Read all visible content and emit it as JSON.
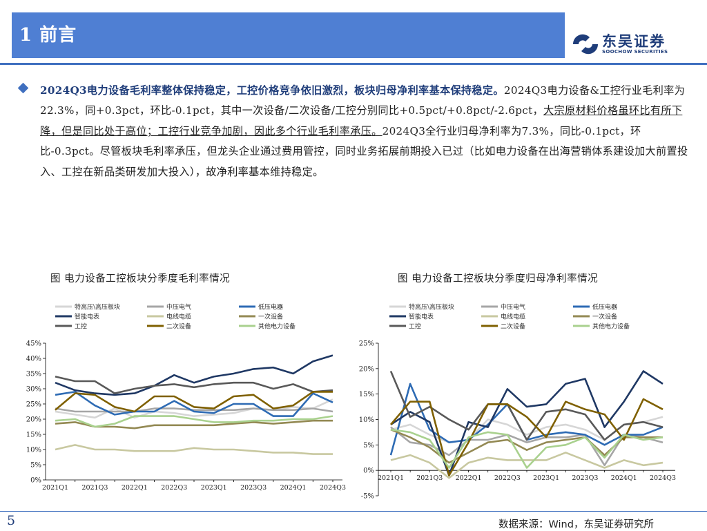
{
  "header": {
    "section_title": "1 前言"
  },
  "logo": {
    "cn": "东吴证券",
    "en": "SOOCHOW SECURITIES"
  },
  "paragraph": {
    "highlight": "2024Q3电力设备毛利率整体保持稳定，工控价格竞争依旧激烈，板块归母净利率基本保持稳定。",
    "part1": "2024Q3电力设备&工控行业毛利率为22.3%，同+0.3pct，环比-0.1pct，其中一次设备/二次设备/工控分别同比+0.5pct/+0.8pct/-2.6pct，",
    "underlined": "大宗原材料价格虽环比有所下降，但是同比处于高位；工控行业竞争加剧，因此多个行业毛利率承压。",
    "part2": "2024Q3全行业归母净利率为7.3%，同比-0.1pct，环比-0.3pct。尽管板块毛利率承压，但龙头企业通过费用管控，同时业务拓展前期投入已过（比如电力设备在出海营销体系建设加大前置投入、工控在新品类研发加大投入），故净利率基本维持稳定。"
  },
  "footer": {
    "page": "5",
    "source": "数据来源：Wind，东吴证券研究所"
  },
  "chart_data": [
    {
      "type": "line",
      "title": "图 电力设备工控板块分季度毛利率情况",
      "x": [
        "2021Q1",
        "2021Q2",
        "2021Q3",
        "2021Q4",
        "2022Q1",
        "2022Q2",
        "2022Q3",
        "2022Q4",
        "2023Q1",
        "2023Q2",
        "2023Q3",
        "2023Q4",
        "2024Q1",
        "2024Q2",
        "2024Q3"
      ],
      "x_tick_labels": [
        "2021Q1",
        "2021Q3",
        "2022Q1",
        "2022Q3",
        "2023Q1",
        "2023Q3",
        "2024Q1",
        "2024Q3"
      ],
      "y_ticks": [
        "0%",
        "5%",
        "10%",
        "15%",
        "20%",
        "25%",
        "30%",
        "35%",
        "40%",
        "45%"
      ],
      "ylim": [
        0,
        45
      ],
      "legend_position": "top",
      "series": [
        {
          "name": "特高压\\高压板块",
          "color": "#d6d6d6",
          "values": [
            22.5,
            21.5,
            20.5,
            23.5,
            20.5,
            22.5,
            22,
            21,
            21.5,
            22,
            23.5,
            23,
            24,
            23.5,
            26.5
          ]
        },
        {
          "name": "中压电气",
          "color": "#a6a6a6",
          "values": [
            23.5,
            22.5,
            22.5,
            22.5,
            22.5,
            23.5,
            23.5,
            23,
            23,
            23,
            23.5,
            23,
            23,
            23.5,
            22.5
          ]
        },
        {
          "name": "低压电器",
          "color": "#2e6bb4",
          "values": [
            28,
            29,
            24.5,
            21.5,
            22.5,
            22.5,
            26,
            22.5,
            22,
            25,
            25,
            21,
            21,
            28.5,
            25.5
          ]
        },
        {
          "name": "智能电表",
          "color": "#1f3864",
          "values": [
            32,
            29.5,
            28.5,
            28,
            28.5,
            31,
            34.5,
            32,
            34,
            35,
            36.5,
            37,
            35,
            39,
            41
          ]
        },
        {
          "name": "电线电缆",
          "color": "#c8c8a0",
          "values": [
            10,
            11.5,
            10,
            10,
            9.5,
            9.5,
            9.5,
            10.5,
            10,
            10,
            9.5,
            9,
            9,
            8.5,
            8.5
          ]
        },
        {
          "name": "一次设备",
          "color": "#938953",
          "values": [
            18.5,
            19,
            17.5,
            17.5,
            17,
            18,
            18,
            18,
            18,
            18.5,
            19,
            18.5,
            19,
            19.5,
            19.5
          ]
        },
        {
          "name": "工控",
          "color": "#595959",
          "values": [
            34,
            32.5,
            32.5,
            28.5,
            30,
            31,
            31.5,
            30.5,
            31.5,
            32,
            32,
            30,
            31.5,
            29,
            29.5
          ]
        },
        {
          "name": "二次设备",
          "color": "#7f6000",
          "values": [
            23,
            28.5,
            28,
            24,
            22.5,
            27.5,
            27.5,
            24,
            23.5,
            27.5,
            28,
            23.5,
            24.5,
            29,
            29
          ]
        },
        {
          "name": "其他电力设备",
          "color": "#a9d18e",
          "values": [
            19.5,
            20,
            17.5,
            18.5,
            21,
            21,
            21,
            20,
            19,
            19,
            19.5,
            19.5,
            20,
            20,
            21
          ]
        }
      ]
    },
    {
      "type": "line",
      "title": "图 电力设备工控板块分季度归母净利率情况",
      "x": [
        "2021Q1",
        "2021Q2",
        "2021Q3",
        "2021Q4",
        "2022Q1",
        "2022Q2",
        "2022Q3",
        "2022Q4",
        "2023Q1",
        "2023Q2",
        "2023Q3",
        "2023Q4",
        "2024Q1",
        "2024Q2",
        "2024Q3"
      ],
      "x_tick_labels": [
        "2021Q1",
        "2021Q3",
        "2022Q1",
        "2022Q3",
        "2023Q1",
        "2023Q3",
        "2024Q1",
        "2024Q3"
      ],
      "y_ticks": [
        "-5%",
        "0%",
        "5%",
        "10%",
        "15%",
        "20%",
        "25%"
      ],
      "ylim": [
        -5,
        25
      ],
      "legend_position": "top",
      "series": [
        {
          "name": "特高压\\高压板块",
          "color": "#d6d6d6",
          "values": [
            8,
            9,
            7,
            5.5,
            6,
            10,
            9,
            7,
            8.5,
            9,
            8,
            6,
            9,
            9.5,
            10.5
          ]
        },
        {
          "name": "中压电气",
          "color": "#a6a6a6",
          "values": [
            8.5,
            5.5,
            5,
            3,
            6,
            6,
            7,
            5.5,
            6.5,
            6.5,
            7,
            1,
            7,
            6.5,
            5.5
          ]
        },
        {
          "name": "低压电器",
          "color": "#2e6bb4",
          "values": [
            3,
            17,
            8,
            5.5,
            6,
            9,
            13,
            6,
            7,
            7.5,
            7,
            5,
            7,
            7,
            8.5
          ]
        },
        {
          "name": "智能电表",
          "color": "#1f3864",
          "values": [
            9,
            11.5,
            9.5,
            -1,
            9.5,
            8.5,
            16,
            12.5,
            13,
            17,
            18,
            8.5,
            13.5,
            19.5,
            17
          ]
        },
        {
          "name": "电线电缆",
          "color": "#c8c8a0",
          "values": [
            2,
            3,
            1.5,
            -1.5,
            1.5,
            2.5,
            2,
            2,
            2,
            3.5,
            2,
            0.5,
            2,
            1,
            1.5
          ]
        },
        {
          "name": "一次设备",
          "color": "#938953",
          "values": [
            8,
            6.5,
            4.5,
            1.5,
            3.5,
            5.5,
            6,
            4,
            5.5,
            6,
            6.5,
            3,
            6.5,
            6.5,
            6.5
          ]
        },
        {
          "name": "工控",
          "color": "#595959",
          "values": [
            19.5,
            10.5,
            12.5,
            10,
            8,
            13,
            13,
            6,
            11.5,
            12,
            11,
            6,
            9,
            9.5,
            8.5
          ]
        },
        {
          "name": "二次设备",
          "color": "#7f6000",
          "values": [
            9,
            13.5,
            13.5,
            -1,
            5.5,
            13,
            13,
            10.5,
            6.5,
            13.5,
            12,
            11,
            6,
            14,
            12
          ]
        },
        {
          "name": "其他电力设备",
          "color": "#a9d18e",
          "values": [
            8,
            7.5,
            6,
            0.5,
            6.5,
            7.5,
            7,
            0.5,
            4.5,
            5,
            6.5,
            2.5,
            7,
            6,
            6.5
          ]
        }
      ]
    }
  ]
}
